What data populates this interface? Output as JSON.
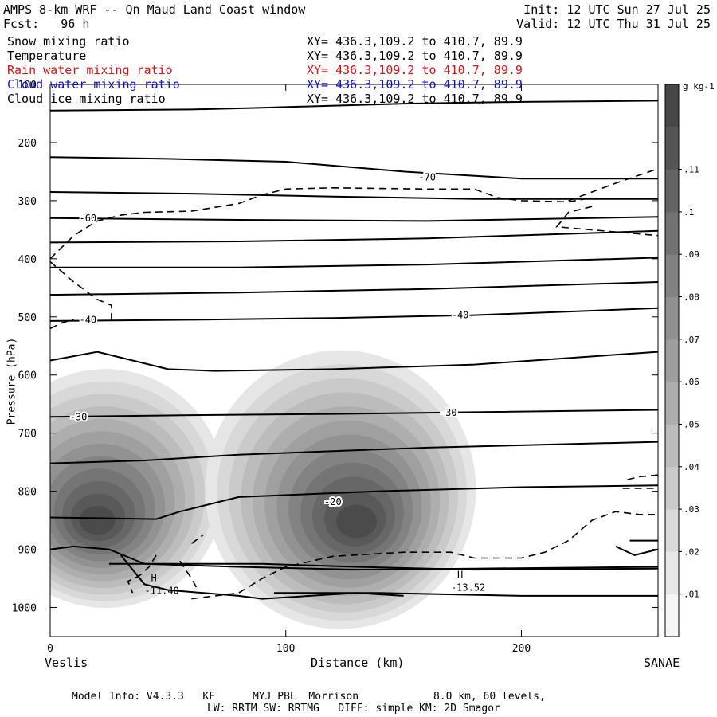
{
  "header": {
    "title": "AMPS 8-km WRF -- Qn Maud Land Coast window",
    "init": "Init: 12 UTC Sun 27 Jul 25",
    "fcst": "Fcst:   96 h",
    "valid": "Valid: 12 UTC Thu 31 Jul 25"
  },
  "legend_rows": [
    {
      "name": "Snow mixing ratio",
      "xy": "XY= 436.3,109.2 to 410.7, 89.9",
      "color": "#000000"
    },
    {
      "name": "Temperature",
      "xy": "XY= 436.3,109.2 to 410.7, 89.9",
      "color": "#000000"
    },
    {
      "name": "Rain water mixing ratio",
      "xy": "XY= 436.3,109.2 to 410.7, 89.9",
      "color": "#e01010"
    },
    {
      "name": "Cloud water mixing ratio",
      "xy": "XY= 436.3,109.2 to 410.7, 89.9",
      "color": "#1010d0"
    },
    {
      "name": "Cloud ice mixing ratio",
      "xy": "XY= 436.3,109.2 to 410.7, 89.9",
      "color": "#000000"
    }
  ],
  "footer": {
    "line1": "Model Info: V4.3.3   KF      MYJ PBL  Morrison            8.0 km, 60 levels,",
    "line2": "LW: RRTM SW: RRTMG   DIFF: simple KM: 2D Smagor"
  },
  "chart_data": {
    "type": "heatmap",
    "xlabel": "Distance (km)",
    "ylabel": "Pressure (hPa)",
    "xlim": [
      0,
      258
    ],
    "ylim": [
      1050,
      100
    ],
    "x_ticks": [
      0,
      100,
      200
    ],
    "y_ticks": [
      100,
      200,
      300,
      400,
      500,
      600,
      700,
      800,
      900,
      1000
    ],
    "x_endpoints": {
      "left": "Veslis",
      "right": "SANAE"
    },
    "colorbar": {
      "unit": "g kg-1",
      "ticks": [
        ".01",
        ".02",
        ".03",
        ".04",
        ".05",
        ".06",
        ".07",
        ".08",
        ".09",
        ".1",
        ".11"
      ],
      "range": [
        0,
        0.13
      ]
    },
    "snow_maxima": [
      {
        "x": 20,
        "p": 850,
        "value": 0.11
      },
      {
        "x": 130,
        "p": 852,
        "value": 0.11
      }
    ],
    "temperature_labels": [
      {
        "text": "-70",
        "x": 160,
        "p": 260
      },
      {
        "text": "-60",
        "x": 16,
        "p": 330
      },
      {
        "text": "-40",
        "x": 16,
        "p": 505
      },
      {
        "text": "-40",
        "x": 174,
        "p": 497
      },
      {
        "text": "-30",
        "x": 12,
        "p": 672
      },
      {
        "text": "-30",
        "x": 169,
        "p": 665
      },
      {
        "text": "-20",
        "x": 120,
        "p": 818
      }
    ],
    "temperature_contours": [
      {
        "x": [
          0,
          60,
          90,
          150,
          200,
          258
        ],
        "p": [
          145,
          143,
          140,
          133,
          130,
          128
        ]
      },
      {
        "x": [
          0,
          50,
          100,
          150,
          200,
          258
        ],
        "p": [
          225,
          228,
          233,
          250,
          262,
          262
        ]
      },
      {
        "x": [
          0,
          60,
          120,
          180,
          258
        ],
        "p": [
          285,
          288,
          293,
          297,
          297
        ]
      },
      {
        "x": [
          0,
          80,
          160,
          258
        ],
        "p": [
          330,
          333,
          335,
          328
        ]
      },
      {
        "x": [
          0,
          80,
          160,
          258
        ],
        "p": [
          372,
          370,
          365,
          352
        ]
      },
      {
        "x": [
          0,
          80,
          160,
          258
        ],
        "p": [
          415,
          415,
          410,
          398
        ]
      },
      {
        "x": [
          0,
          80,
          160,
          258
        ],
        "p": [
          462,
          458,
          452,
          440
        ]
      },
      {
        "x": [
          0,
          60,
          120,
          180,
          258
        ],
        "p": [
          507,
          505,
          502,
          497,
          485
        ]
      },
      {
        "x": [
          0,
          20,
          50,
          70,
          120,
          180,
          258
        ],
        "p": [
          575,
          560,
          590,
          593,
          590,
          582,
          560
        ]
      },
      {
        "x": [
          0,
          60,
          120,
          180,
          258
        ],
        "p": [
          672,
          669,
          667,
          664,
          660
        ]
      },
      {
        "x": [
          0,
          40,
          80,
          160,
          258
        ],
        "p": [
          752,
          747,
          737,
          725,
          715
        ]
      },
      {
        "x": [
          0,
          30,
          45,
          55,
          80,
          140,
          200,
          258
        ],
        "p": [
          845,
          847,
          848,
          835,
          810,
          800,
          793,
          790
        ]
      },
      {
        "x": [
          0,
          10,
          25,
          40,
          80,
          130,
          180,
          258
        ],
        "p": [
          900,
          895,
          900,
          925,
          930,
          935,
          933,
          930
        ]
      },
      {
        "x": [
          25,
          50,
          75,
          90,
          130,
          180,
          258
        ],
        "p": [
          925,
          925,
          925,
          925,
          930,
          935,
          933
        ]
      },
      {
        "x": [
          30,
          40,
          50,
          80,
          90,
          130,
          150
        ],
        "p": [
          910,
          960,
          970,
          980,
          985,
          975,
          980
        ]
      },
      {
        "x": [
          95,
          140,
          200,
          258
        ],
        "p": [
          975,
          975,
          980,
          980
        ]
      },
      {
        "x": [
          240,
          248,
          258
        ],
        "p": [
          895,
          910,
          900
        ]
      },
      {
        "x": [
          246,
          258
        ],
        "p": [
          885,
          885
        ]
      }
    ],
    "cloud_ice_contours": [
      {
        "x": [
          0,
          10,
          20,
          30,
          40,
          60,
          80,
          90,
          100,
          120,
          160,
          180,
          190,
          200,
          220,
          230
        ],
        "p": [
          400,
          360,
          335,
          325,
          320,
          318,
          305,
          290,
          280,
          278,
          280,
          280,
          295,
          300,
          302,
          295
        ]
      },
      {
        "x": [
          220,
          240,
          258
        ],
        "p": [
          300,
          270,
          245
        ]
      },
      {
        "x": [
          230,
          220,
          215,
          258
        ],
        "p": [
          310,
          320,
          345,
          360
        ]
      },
      {
        "x": [
          0,
          10,
          20,
          26,
          26
        ],
        "p": [
          405,
          440,
          470,
          480,
          510
        ]
      },
      {
        "x": [
          0,
          5,
          10
        ],
        "p": [
          520,
          510,
          505
        ]
      },
      {
        "x": [
          60,
          80,
          90,
          100,
          120,
          150,
          170,
          180,
          200,
          210,
          220,
          230,
          240,
          250,
          258
        ],
        "p": [
          985,
          975,
          950,
          930,
          912,
          905,
          905,
          915,
          915,
          905,
          885,
          850,
          835,
          840,
          840
        ]
      },
      {
        "x": [
          45,
          42,
          38,
          33,
          35
        ],
        "p": [
          910,
          930,
          945,
          955,
          975
        ]
      },
      {
        "x": [
          55,
          60,
          62
        ],
        "p": [
          920,
          950,
          965
        ]
      },
      {
        "x": [
          60,
          65
        ],
        "p": [
          890,
          875
        ]
      },
      {
        "x": [
          245,
          250,
          258
        ],
        "p": [
          780,
          775,
          772
        ]
      },
      {
        "x": [
          243,
          258
        ],
        "p": [
          795,
          795
        ]
      }
    ],
    "extrema": [
      {
        "label": "H",
        "value": "-11.40",
        "x": 44,
        "p": 960
      },
      {
        "label": "H",
        "value": "-13.52",
        "x": 174,
        "p": 955
      }
    ]
  }
}
